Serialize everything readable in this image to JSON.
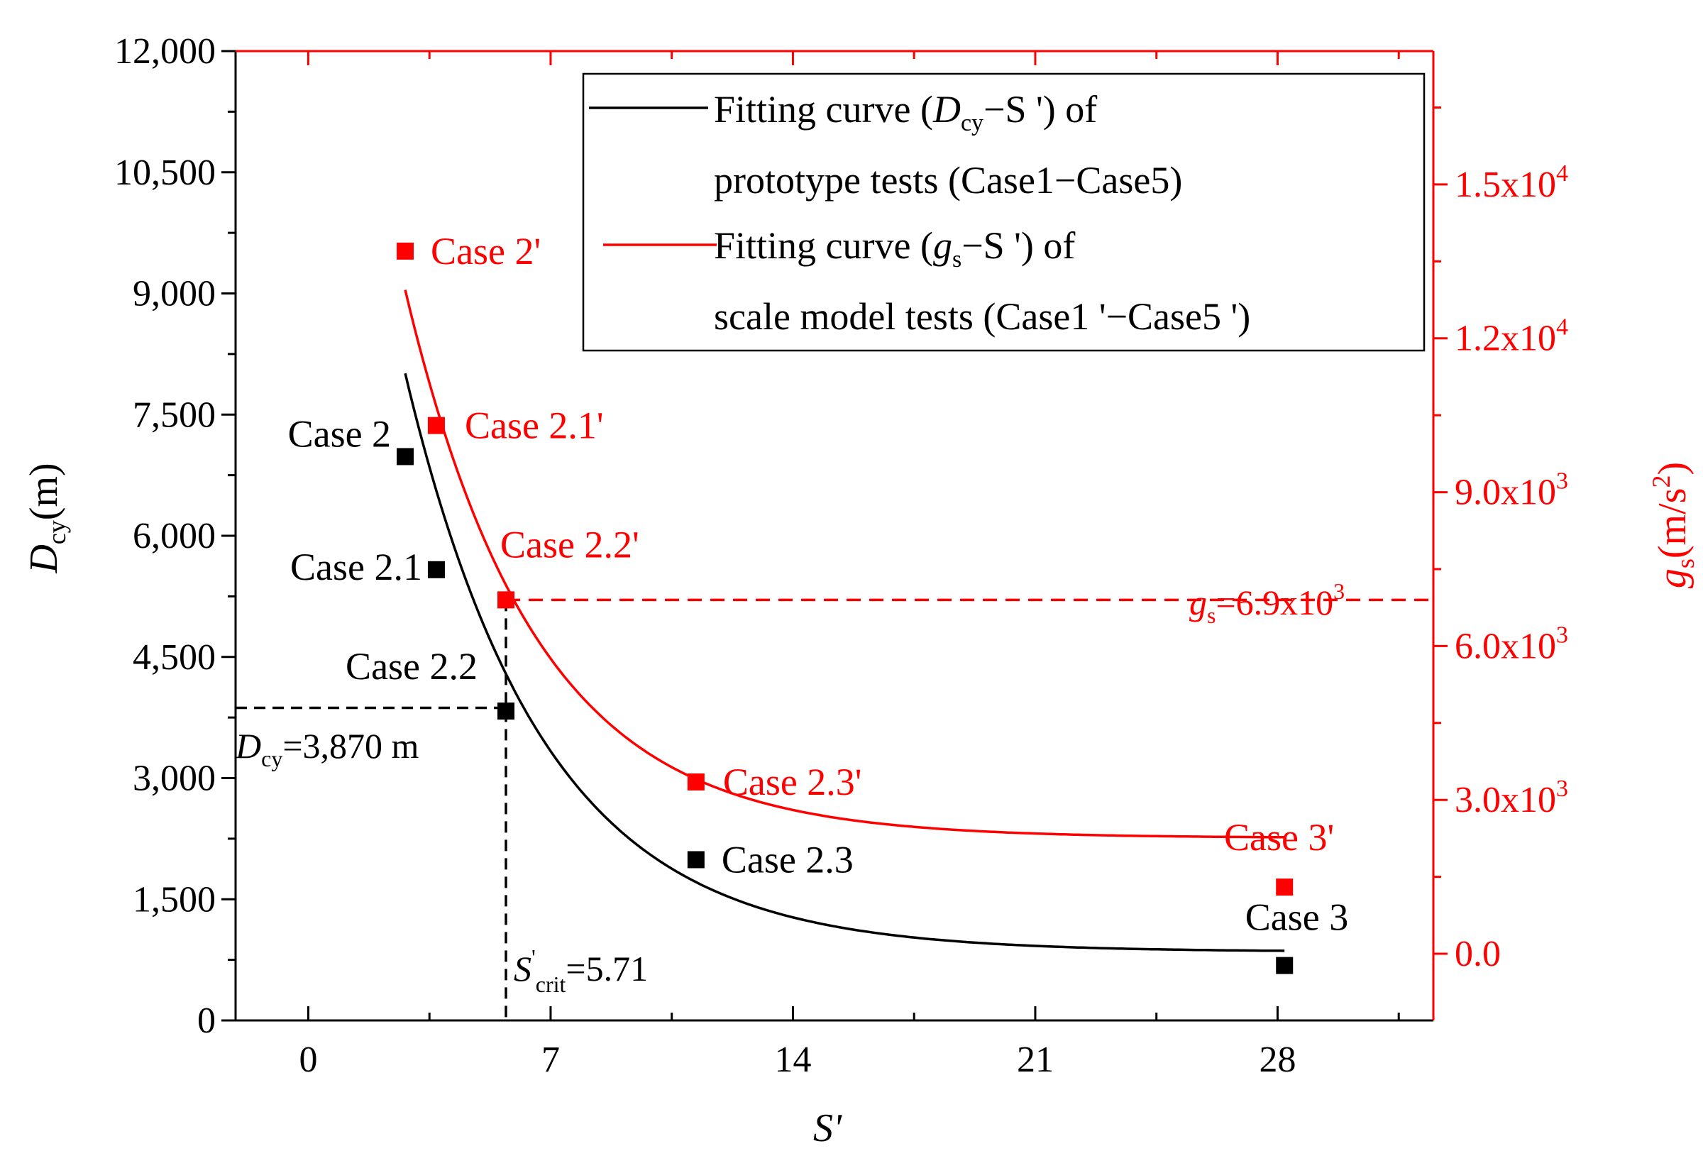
{
  "chart_data": {
    "type": "scatter",
    "xlabel": "S'",
    "ylabel_left_main": "D",
    "ylabel_left_sub": "cy",
    "ylabel_left_unit": "(m)",
    "ylabel_right_main": "g",
    "ylabel_right_sub": "s",
    "ylabel_right_unit_pre": "(m/s",
    "ylabel_right_unit_sup": "2",
    "ylabel_right_unit_post": ")",
    "xlim": [
      -2.1,
      32.5
    ],
    "ylim_left": [
      0,
      12000
    ],
    "ylim_right": [
      -1300,
      17600
    ],
    "x_ticks": [
      0,
      7,
      14,
      21,
      28
    ],
    "x_tick_labels": [
      "0",
      "7",
      "14",
      "21",
      "28"
    ],
    "y_left_ticks": [
      0,
      1500,
      3000,
      4500,
      6000,
      7500,
      9000,
      10500,
      12000
    ],
    "y_left_tick_labels": [
      "0",
      "1,500",
      "3,000",
      "4,500",
      "6,000",
      "7,500",
      "9,000",
      "10,500",
      "12,000"
    ],
    "y_right_ticks": [
      0,
      3000,
      6000,
      9000,
      12000,
      15000
    ],
    "y_right_tick_base": [
      "0.0",
      "3.0x10",
      "6.0x10",
      "9.0x10",
      "1.2x10",
      "1.5x10"
    ],
    "y_right_tick_exp": [
      "",
      "3",
      "3",
      "3",
      "4",
      "4"
    ],
    "colors": {
      "black": "#000000",
      "red": "#ff0000"
    },
    "series": [
      {
        "name": "prototype",
        "axis": "left",
        "color": "#000000",
        "x": [
          2.8,
          3.7,
          5.71,
          11.2,
          28.2
        ],
        "y": [
          6980,
          5580,
          3830,
          1990,
          680
        ],
        "labels": [
          "Case 2",
          "Case 2.1",
          "Case 2.2",
          "Case 2.3",
          "Case 3"
        ]
      },
      {
        "name": "scale model",
        "axis": "right",
        "color": "#ff0000",
        "x": [
          2.8,
          3.7,
          5.71,
          11.2,
          28.2
        ],
        "y": [
          13700,
          10300,
          6900,
          3350,
          1300
        ],
        "labels": [
          "Case 2'",
          "Case 2.1'",
          "Case 2.2'",
          "Case 2.3'",
          "Case 3'"
        ]
      }
    ],
    "fits": [
      {
        "axis": "left",
        "color": "#000000",
        "a": 850,
        "b": 14500,
        "c": 0.252,
        "x_range": [
          2.8,
          28.2
        ]
      },
      {
        "axis": "right",
        "color": "#ff0000",
        "a": 2260,
        "b": 22500,
        "c": 0.266,
        "x_range": [
          2.8,
          28.2
        ]
      }
    ],
    "reference_lines": {
      "h_left_y": 3870,
      "v_x": 5.71,
      "h_right_y": 6900
    },
    "annotations": {
      "dcy_main": "D",
      "dcy_sub": "cy",
      "dcy_value": "=3,870 m",
      "scrit_main": "S",
      "scrit_sup": "'",
      "scrit_sub": "crit",
      "scrit_value": "=5.71",
      "gs_main": "g",
      "gs_sub": "s",
      "gs_value": "=6.9x10",
      "gs_sup": "3"
    },
    "legend": {
      "position": "top-right",
      "entries": [
        {
          "color": "#000000",
          "line1_pre": "Fitting curve (",
          "line1_main": "D",
          "line1_sub": "cy",
          "line1_post": "−S ') of",
          "line2": "prototype tests (Case1−Case5)"
        },
        {
          "color": "#ff0000",
          "line1_pre": "Fitting curve (",
          "line1_main": "g",
          "line1_sub": "s",
          "line1_post": "−S ') of",
          "line2": "scale model tests (Case1 '−Case5 ')"
        }
      ]
    }
  }
}
